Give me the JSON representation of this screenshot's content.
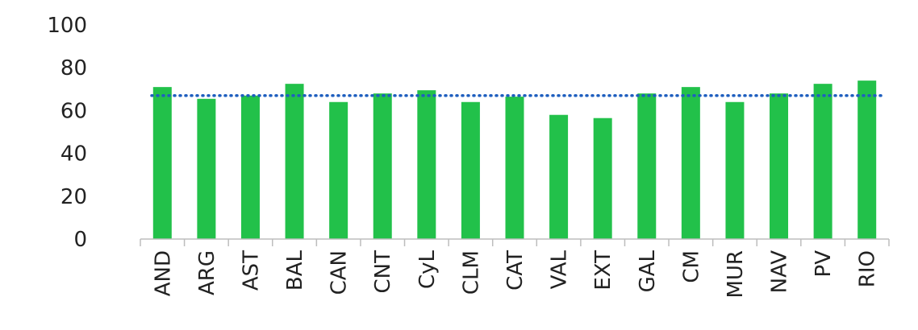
{
  "chart_data": {
    "type": "bar",
    "title": "",
    "xlabel": "",
    "ylabel": "",
    "categories": [
      "AND",
      "ARG",
      "AST",
      "BAL",
      "CAN",
      "CNT",
      "CyL",
      "CLM",
      "CAT",
      "VAL",
      "EXT",
      "GAL",
      "CM",
      "MUR",
      "NAV",
      "PV",
      "RIO"
    ],
    "values": [
      71,
      65.5,
      67,
      72.5,
      64,
      68,
      69.5,
      64,
      66.5,
      58,
      56.5,
      68,
      71,
      64,
      68,
      72.5,
      74
    ],
    "reference_line": {
      "value": 67,
      "style": "dotted",
      "color": "#1f5fbf"
    },
    "ylim": [
      0,
      100
    ],
    "yticks": [
      "0",
      "20",
      "40",
      "60",
      "80",
      "100"
    ],
    "grid": false,
    "legend": "none",
    "colors": {
      "bar": "#22c14a",
      "axis": "#bdbdbd",
      "text": "#222222"
    }
  }
}
